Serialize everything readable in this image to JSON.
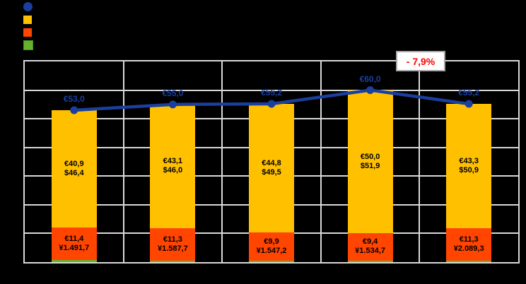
{
  "window": {
    "background": "#000000"
  },
  "legend": {
    "position": "top-left",
    "items": [
      {
        "id": "total-line",
        "marker": "circle",
        "color": "#1b3f9e"
      },
      {
        "id": "yellow-segment",
        "marker": "square",
        "color": "#ffc000"
      },
      {
        "id": "orange-segment",
        "marker": "square",
        "color": "#ff4500"
      },
      {
        "id": "green-segment",
        "marker": "square",
        "color": "#65b32d",
        "border_color": "#4f8d1f"
      }
    ]
  },
  "chart_data": {
    "type": "bar",
    "subtype": "stacked-bars-with-total-line",
    "categories": [
      "",
      "",
      "",
      "",
      ""
    ],
    "ylim": [
      0,
      70
    ],
    "grid": true,
    "grid_color": "#d9d9d9",
    "legend_position": "top-left",
    "series": [
      {
        "name": "green-bar",
        "type": "bar",
        "stack_order": 1,
        "color": "#65b32d",
        "values": [
          0.7,
          0.6,
          0.5,
          0.6,
          0.6
        ],
        "data_labels": [
          null,
          null,
          null,
          null,
          null
        ]
      },
      {
        "name": "orange-bar",
        "type": "bar",
        "stack_order": 2,
        "color": "#ff4500",
        "values": [
          11.4,
          11.3,
          9.9,
          9.4,
          11.3
        ],
        "data_labels": [
          [
            "€11,4",
            "¥1.491,7"
          ],
          [
            "€11,3",
            "¥1.587,7"
          ],
          [
            "€9,9",
            "¥1.547,2"
          ],
          [
            "€9,4",
            "¥1.534,7"
          ],
          [
            "€11,3",
            "¥2.089,3"
          ]
        ]
      },
      {
        "name": "yellow-bar",
        "type": "bar",
        "stack_order": 3,
        "color": "#ffc000",
        "values": [
          40.9,
          43.1,
          44.8,
          50.0,
          43.3
        ],
        "data_labels": [
          [
            "€40,9",
            "$46,4"
          ],
          [
            "€43,1",
            "$46,0"
          ],
          [
            "€44,8",
            "$49,5"
          ],
          [
            "€50,0",
            "$51,9"
          ],
          [
            "€43,3",
            "$50,9"
          ]
        ]
      },
      {
        "name": "total-line",
        "type": "line",
        "color": "#1b3f9e",
        "values": [
          53.0,
          55.0,
          55.2,
          60.0,
          55.2
        ],
        "data_labels": [
          "€53,0",
          "€55,0",
          "€55,2",
          "€60,0",
          "€55,2"
        ]
      }
    ],
    "annotation": {
      "text": "- 7,9%",
      "text_color": "#ff0000",
      "box_fill": "#ffffff",
      "box_border": "#a6a6a6",
      "between_points": [
        4,
        5
      ]
    }
  }
}
